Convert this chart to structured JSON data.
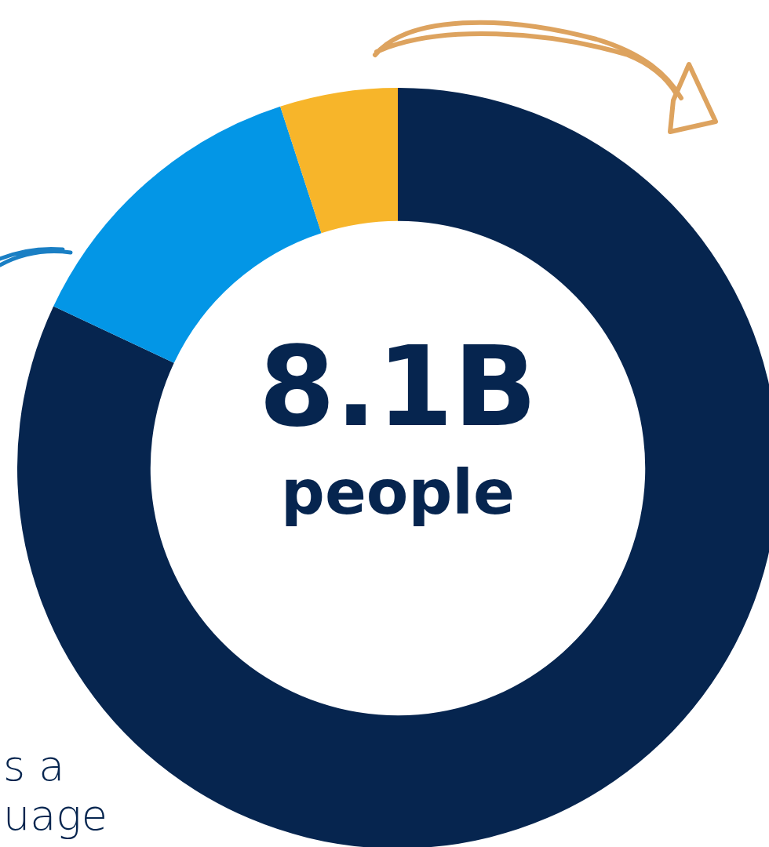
{
  "chart_data": {
    "type": "donut",
    "title": "8.1B",
    "subtitle": "people",
    "categories": [
      null,
      null,
      null
    ],
    "values": [
      82,
      13,
      5
    ],
    "colors": [
      "#06254f",
      "#0396e6",
      "#f7b52a"
    ],
    "legend": false,
    "annotations": [
      "s a",
      "uage"
    ]
  }
}
